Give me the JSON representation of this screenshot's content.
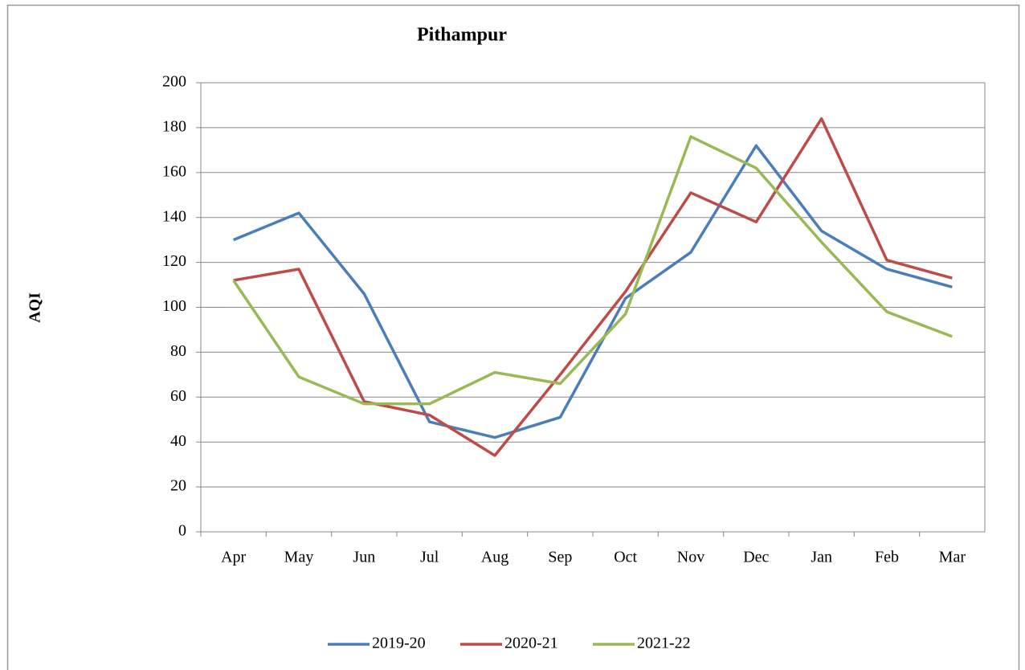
{
  "chart_data": {
    "type": "line",
    "title": "Pithampur",
    "y_label": "AQI",
    "categories": [
      "Apr",
      "May",
      "Jun",
      "Jul",
      "Aug",
      "Sep",
      "Oct",
      "Nov",
      "Dec",
      "Jan",
      "Feb",
      "Mar"
    ],
    "series": [
      {
        "name": "2019-20",
        "color": "#4a7ebb",
        "values": [
          130,
          142,
          106,
          49,
          42,
          51,
          104,
          124.5,
          172,
          134,
          117,
          109
        ]
      },
      {
        "name": "2020-21",
        "color": "#be4b48",
        "values": [
          112,
          117,
          58,
          52,
          34,
          70,
          107,
          151,
          138,
          184,
          121,
          113
        ]
      },
      {
        "name": "2021-22",
        "color": "#98b954",
        "values": [
          112,
          69,
          57,
          57,
          71,
          66,
          97,
          176,
          162,
          129,
          98,
          87
        ]
      }
    ],
    "ylim": [
      0,
      200
    ],
    "yticks": [
      0,
      20,
      40,
      60,
      80,
      100,
      120,
      140,
      160,
      180,
      200
    ],
    "grid": true,
    "legend": "bottom"
  }
}
